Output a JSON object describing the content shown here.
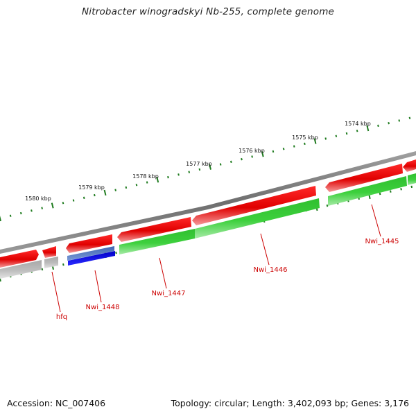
{
  "title": "Nitrobacter winogradskyi Nb-255, complete genome",
  "footer": {
    "accession": "Accession: NC_007406",
    "summary": "Topology: circular; Length: 3,402,093 bp; Genes: 3,176"
  },
  "colors": {
    "backbone": "#808080",
    "ticks": "#1e7b1e",
    "forward_gene": "#e60000",
    "reverse_gene": "#3cc83c",
    "rna_forward": "#5078c8",
    "rna_reverse": "#0000e6",
    "other": "#bdbdbd",
    "label": "#cc0000"
  },
  "scale": {
    "unit": "kbp",
    "labels": [
      "1580 kbp",
      "1579 kbp",
      "1578 kbp",
      "1577 kbp",
      "1576 kbp",
      "1575 kbp",
      "1574 kbp"
    ]
  },
  "gene_labels": [
    "hfq",
    "Nwi_1448",
    "Nwi_1447",
    "Nwi_1446",
    "Nwi_1445"
  ]
}
